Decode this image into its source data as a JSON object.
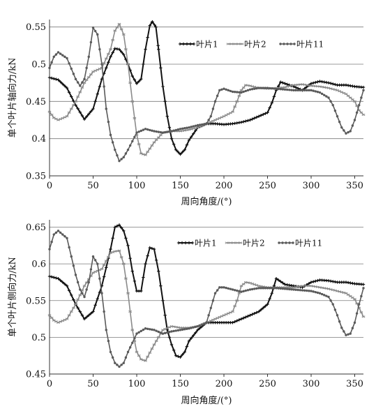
{
  "chart_data": [
    {
      "type": "line",
      "xlabel": "周向角度/(°)",
      "ylabel": "单个叶片轴向力/kN",
      "xlim": [
        0,
        360
      ],
      "ylim": [
        0.35,
        0.56
      ],
      "xticks": [
        "0",
        "50",
        "100",
        "150",
        "200",
        "250",
        "300",
        "350"
      ],
      "yticks": [
        "0.35",
        "0.4",
        "0.45",
        "0.5",
        "0.55"
      ],
      "grid": "horizontal",
      "legend_position": "top-right",
      "series": [
        {
          "name": "叶片1",
          "color": "#111111",
          "marker": "plus",
          "x": [
            0,
            10,
            20,
            30,
            40,
            50,
            60,
            70,
            75,
            80,
            85,
            90,
            95,
            100,
            105,
            110,
            115,
            118,
            122,
            125,
            130,
            135,
            140,
            145,
            150,
            155,
            160,
            170,
            180,
            190,
            200,
            210,
            220,
            230,
            240,
            250,
            255,
            260,
            265,
            270,
            280,
            290,
            300,
            310,
            320,
            330,
            340,
            350,
            360
          ],
          "y": [
            0.482,
            0.479,
            0.468,
            0.445,
            0.426,
            0.44,
            0.48,
            0.51,
            0.521,
            0.52,
            0.513,
            0.5,
            0.484,
            0.474,
            0.48,
            0.52,
            0.552,
            0.557,
            0.55,
            0.52,
            0.47,
            0.43,
            0.4,
            0.385,
            0.379,
            0.385,
            0.398,
            0.415,
            0.42,
            0.42,
            0.419,
            0.42,
            0.422,
            0.425,
            0.43,
            0.435,
            0.448,
            0.465,
            0.476,
            0.474,
            0.47,
            0.465,
            0.474,
            0.477,
            0.475,
            0.472,
            0.472,
            0.47,
            0.469
          ]
        },
        {
          "name": "叶片2",
          "color": "#8a8a8a",
          "marker": "dash",
          "x": [
            0,
            5,
            10,
            20,
            30,
            40,
            50,
            60,
            70,
            75,
            80,
            85,
            90,
            95,
            100,
            105,
            110,
            120,
            130,
            140,
            150,
            160,
            170,
            180,
            190,
            200,
            210,
            215,
            220,
            225,
            230,
            240,
            250,
            260,
            270,
            280,
            290,
            300,
            310,
            320,
            330,
            340,
            350,
            355,
            360
          ],
          "y": [
            0.436,
            0.428,
            0.425,
            0.43,
            0.45,
            0.475,
            0.49,
            0.495,
            0.52,
            0.545,
            0.554,
            0.54,
            0.5,
            0.45,
            0.405,
            0.38,
            0.378,
            0.395,
            0.408,
            0.41,
            0.41,
            0.412,
            0.415,
            0.42,
            0.425,
            0.43,
            0.436,
            0.45,
            0.465,
            0.472,
            0.471,
            0.468,
            0.467,
            0.468,
            0.469,
            0.472,
            0.473,
            0.471,
            0.47,
            0.468,
            0.465,
            0.46,
            0.45,
            0.438,
            0.432
          ]
        },
        {
          "name": "叶片11",
          "color": "#5a5a5a",
          "marker": "dot",
          "x": [
            0,
            5,
            10,
            20,
            30,
            35,
            40,
            45,
            50,
            55,
            60,
            65,
            70,
            75,
            80,
            85,
            90,
            100,
            110,
            120,
            130,
            140,
            150,
            160,
            170,
            180,
            185,
            190,
            195,
            200,
            210,
            220,
            230,
            240,
            250,
            260,
            270,
            280,
            290,
            300,
            310,
            320,
            325,
            330,
            335,
            340,
            345,
            350,
            355,
            360
          ],
          "y": [
            0.495,
            0.51,
            0.516,
            0.508,
            0.48,
            0.471,
            0.48,
            0.51,
            0.549,
            0.54,
            0.5,
            0.44,
            0.405,
            0.385,
            0.37,
            0.375,
            0.385,
            0.408,
            0.413,
            0.41,
            0.408,
            0.41,
            0.413,
            0.415,
            0.418,
            0.42,
            0.43,
            0.45,
            0.465,
            0.467,
            0.463,
            0.462,
            0.466,
            0.468,
            0.468,
            0.467,
            0.466,
            0.465,
            0.465,
            0.465,
            0.462,
            0.455,
            0.445,
            0.43,
            0.415,
            0.407,
            0.41,
            0.425,
            0.445,
            0.465
          ]
        }
      ]
    },
    {
      "type": "line",
      "xlabel": "周向角度/(°)",
      "ylabel": "单个叶片侧向力/kN",
      "xlim": [
        0,
        360
      ],
      "ylim": [
        0.45,
        0.66
      ],
      "xticks": [
        "0",
        "50",
        "100",
        "150",
        "200",
        "250",
        "300",
        "350"
      ],
      "yticks": [
        "0.45",
        "0.5",
        "0.55",
        "0.6",
        "0.65"
      ],
      "grid": "horizontal",
      "legend_position": "top-right",
      "series": [
        {
          "name": "叶片1",
          "color": "#111111",
          "marker": "plus",
          "x": [
            0,
            10,
            20,
            30,
            40,
            50,
            60,
            70,
            75,
            80,
            85,
            90,
            95,
            100,
            105,
            110,
            115,
            120,
            125,
            130,
            135,
            140,
            145,
            150,
            155,
            160,
            170,
            180,
            190,
            200,
            210,
            220,
            230,
            240,
            250,
            255,
            260,
            265,
            270,
            280,
            290,
            300,
            310,
            320,
            330,
            340,
            350,
            360
          ],
          "y": [
            0.583,
            0.58,
            0.57,
            0.545,
            0.525,
            0.535,
            0.57,
            0.62,
            0.65,
            0.653,
            0.645,
            0.625,
            0.59,
            0.563,
            0.563,
            0.6,
            0.622,
            0.62,
            0.59,
            0.55,
            0.51,
            0.49,
            0.475,
            0.473,
            0.48,
            0.495,
            0.51,
            0.52,
            0.52,
            0.52,
            0.52,
            0.525,
            0.53,
            0.535,
            0.545,
            0.56,
            0.58,
            0.576,
            0.572,
            0.57,
            0.568,
            0.575,
            0.578,
            0.577,
            0.575,
            0.575,
            0.573,
            0.572
          ]
        },
        {
          "name": "叶片2",
          "color": "#8a8a8a",
          "marker": "dash",
          "x": [
            0,
            5,
            10,
            20,
            30,
            40,
            50,
            60,
            70,
            75,
            80,
            85,
            90,
            95,
            100,
            105,
            110,
            120,
            130,
            140,
            150,
            160,
            170,
            180,
            190,
            200,
            210,
            215,
            220,
            225,
            230,
            240,
            250,
            260,
            270,
            280,
            290,
            300,
            310,
            320,
            330,
            340,
            350,
            355,
            360
          ],
          "y": [
            0.53,
            0.523,
            0.52,
            0.525,
            0.545,
            0.57,
            0.588,
            0.593,
            0.615,
            0.617,
            0.618,
            0.6,
            0.56,
            0.51,
            0.48,
            0.47,
            0.468,
            0.49,
            0.51,
            0.515,
            0.513,
            0.513,
            0.515,
            0.52,
            0.525,
            0.53,
            0.535,
            0.55,
            0.57,
            0.575,
            0.574,
            0.57,
            0.568,
            0.568,
            0.568,
            0.568,
            0.57,
            0.57,
            0.568,
            0.566,
            0.563,
            0.56,
            0.552,
            0.54,
            0.528
          ]
        },
        {
          "name": "叶片11",
          "color": "#5a5a5a",
          "marker": "dot",
          "x": [
            0,
            5,
            10,
            20,
            30,
            35,
            40,
            45,
            50,
            55,
            60,
            65,
            70,
            75,
            80,
            85,
            90,
            100,
            110,
            120,
            130,
            140,
            150,
            160,
            170,
            180,
            185,
            190,
            195,
            200,
            210,
            220,
            230,
            240,
            250,
            260,
            270,
            280,
            290,
            300,
            310,
            320,
            325,
            330,
            335,
            340,
            345,
            350,
            355,
            360
          ],
          "y": [
            0.62,
            0.64,
            0.645,
            0.635,
            0.585,
            0.565,
            0.555,
            0.575,
            0.61,
            0.6,
            0.56,
            0.51,
            0.48,
            0.465,
            0.46,
            0.465,
            0.48,
            0.505,
            0.512,
            0.51,
            0.505,
            0.508,
            0.51,
            0.512,
            0.515,
            0.52,
            0.54,
            0.56,
            0.568,
            0.568,
            0.565,
            0.562,
            0.565,
            0.567,
            0.567,
            0.567,
            0.566,
            0.565,
            0.564,
            0.563,
            0.56,
            0.555,
            0.545,
            0.53,
            0.513,
            0.503,
            0.505,
            0.52,
            0.545,
            0.567
          ]
        }
      ]
    }
  ]
}
